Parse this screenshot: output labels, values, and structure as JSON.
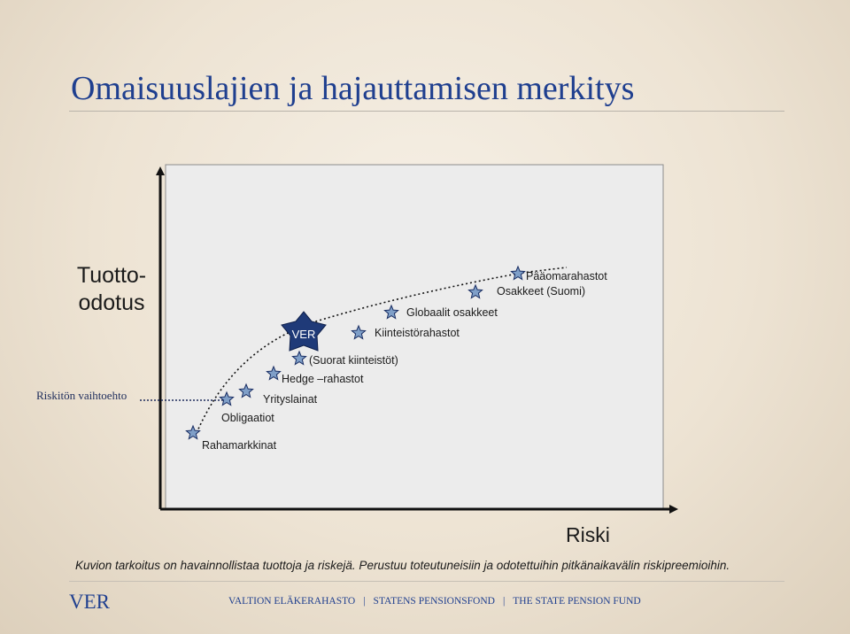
{
  "title": "Omaisuuslajien ja hajauttamisen merkitys",
  "y_axis_label": "Tuotto-\nodotus",
  "x_axis_label": "Riski",
  "risk_free_label": "Riskitön vaihtoehto",
  "ver_badge_label": "VER",
  "assets": [
    {
      "id": "rahamarkkinat",
      "label": "Rahamarkkinat"
    },
    {
      "id": "obligaatiot",
      "label": "Obligaatiot"
    },
    {
      "id": "yrityslainat",
      "label": "Yrityslainat"
    },
    {
      "id": "hedge",
      "label": "Hedge –rahastot"
    },
    {
      "id": "suorat-kiinteistot",
      "label": "(Suorat kiinteistöt)"
    },
    {
      "id": "kiinteistorahastot",
      "label": "Kiinteistörahastot"
    },
    {
      "id": "globaalit-osakkeet",
      "label": "Globaalit osakkeet"
    },
    {
      "id": "osakkeet-suomi",
      "label": "Osakkeet  (Suomi)"
    },
    {
      "id": "paaomarahastot",
      "label": "Pääomarahastot"
    }
  ],
  "caption": "Kuvion tarkoitus on havainnollistaa tuottoja ja riskejä. Perustuu toteutuneisiin ja odotettuihin pitkänaikavälin riskipreemioihin.",
  "footer": {
    "logo": "VER",
    "org_fi": "VALTION ELÄKERAHASTO",
    "org_sv": "STATENS PENSIONSFOND",
    "org_en": "THE STATE PENSION FUND",
    "separator": "|"
  },
  "colors": {
    "title": "#1f3f8f",
    "star_fill": "#7f9fc8",
    "star_stroke": "#1a2e63",
    "badge_fill": "#1f3a78",
    "panel": "#eceded"
  }
}
